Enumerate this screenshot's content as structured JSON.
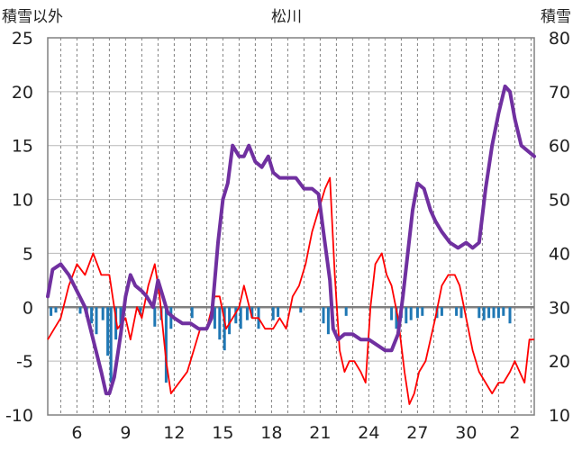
{
  "chart_data": {
    "type": "line",
    "title": "松川",
    "left_axis_label": "積雪以外",
    "right_axis_label": "積雪",
    "y_left": {
      "min": -10,
      "max": 25,
      "ticks": [
        "25",
        "20",
        "15",
        "10",
        "5",
        "0",
        "-5",
        "-10"
      ]
    },
    "y_right": {
      "min": 10,
      "max": 80,
      "ticks": [
        "80",
        "70",
        "60",
        "50",
        "40",
        "30",
        "20",
        "10"
      ]
    },
    "x_axis": {
      "day_start": 4.2,
      "day_end": 34.2,
      "tick_labels": [
        {
          "day": 6,
          "label": "6"
        },
        {
          "day": 9,
          "label": "9"
        },
        {
          "day": 12,
          "label": "12"
        },
        {
          "day": 15,
          "label": "15"
        },
        {
          "day": 18,
          "label": "18"
        },
        {
          "day": 21,
          "label": "21"
        },
        {
          "day": 24,
          "label": "24"
        },
        {
          "day": 27,
          "label": "27"
        },
        {
          "day": 30,
          "label": "30"
        },
        {
          "day": 33,
          "label": "2"
        }
      ]
    },
    "grid": {
      "vertical_dashed": true,
      "horizontal": true
    },
    "series": [
      {
        "role": "snow-depth",
        "axis": "right",
        "color": "#7030a0",
        "points": [
          [
            4.2,
            32
          ],
          [
            4.5,
            37
          ],
          [
            5.0,
            38
          ],
          [
            5.5,
            36
          ],
          [
            6.0,
            33
          ],
          [
            6.5,
            30
          ],
          [
            7.0,
            24
          ],
          [
            7.5,
            18
          ],
          [
            7.8,
            14
          ],
          [
            8.0,
            14
          ],
          [
            8.3,
            17
          ],
          [
            8.7,
            25
          ],
          [
            9.0,
            32
          ],
          [
            9.3,
            36
          ],
          [
            9.6,
            34
          ],
          [
            10.0,
            33
          ],
          [
            10.3,
            32
          ],
          [
            10.7,
            30
          ],
          [
            11.0,
            35
          ],
          [
            11.3,
            32
          ],
          [
            11.6,
            29
          ],
          [
            12.0,
            28
          ],
          [
            12.5,
            27
          ],
          [
            13.0,
            27
          ],
          [
            13.5,
            26
          ],
          [
            14.0,
            26
          ],
          [
            14.3,
            28
          ],
          [
            14.7,
            42
          ],
          [
            15.0,
            50
          ],
          [
            15.3,
            53
          ],
          [
            15.6,
            60
          ],
          [
            16.0,
            58
          ],
          [
            16.3,
            58
          ],
          [
            16.6,
            60
          ],
          [
            17.0,
            57
          ],
          [
            17.4,
            56
          ],
          [
            17.8,
            58
          ],
          [
            18.1,
            55
          ],
          [
            18.5,
            54
          ],
          [
            19.0,
            54
          ],
          [
            19.5,
            54
          ],
          [
            20.0,
            52
          ],
          [
            20.5,
            52
          ],
          [
            20.9,
            51
          ],
          [
            21.2,
            44
          ],
          [
            21.6,
            35
          ],
          [
            21.8,
            26
          ],
          [
            22.1,
            24
          ],
          [
            22.5,
            25
          ],
          [
            23.0,
            25
          ],
          [
            23.5,
            24
          ],
          [
            24.0,
            24
          ],
          [
            24.5,
            23
          ],
          [
            25.0,
            22
          ],
          [
            25.4,
            22
          ],
          [
            25.8,
            25
          ],
          [
            26.1,
            32
          ],
          [
            26.4,
            40
          ],
          [
            26.7,
            48
          ],
          [
            27.0,
            53
          ],
          [
            27.4,
            52
          ],
          [
            27.8,
            48
          ],
          [
            28.1,
            46
          ],
          [
            28.5,
            44
          ],
          [
            29.0,
            42
          ],
          [
            29.5,
            41
          ],
          [
            30.0,
            42
          ],
          [
            30.4,
            41
          ],
          [
            30.8,
            42
          ],
          [
            31.2,
            52
          ],
          [
            31.6,
            60
          ],
          [
            32.0,
            66
          ],
          [
            32.4,
            71
          ],
          [
            32.7,
            70
          ],
          [
            33.0,
            65
          ],
          [
            33.4,
            60
          ],
          [
            33.8,
            59
          ],
          [
            34.2,
            58
          ]
        ]
      },
      {
        "role": "temperature",
        "axis": "left",
        "color": "#ff0000",
        "points": [
          [
            4.2,
            -3
          ],
          [
            4.6,
            -2
          ],
          [
            5.0,
            -1
          ],
          [
            5.5,
            2
          ],
          [
            6.0,
            4
          ],
          [
            6.5,
            3
          ],
          [
            7.0,
            5
          ],
          [
            7.5,
            3
          ],
          [
            8.0,
            3
          ],
          [
            8.5,
            -2
          ],
          [
            9.0,
            -1
          ],
          [
            9.3,
            -3
          ],
          [
            9.7,
            0
          ],
          [
            10.0,
            -1
          ],
          [
            10.4,
            2
          ],
          [
            10.8,
            4
          ],
          [
            11.1,
            1
          ],
          [
            11.5,
            -5
          ],
          [
            11.8,
            -8
          ],
          [
            12.3,
            -7
          ],
          [
            12.8,
            -6
          ],
          [
            13.2,
            -4
          ],
          [
            13.6,
            -2
          ],
          [
            14.0,
            -2
          ],
          [
            14.5,
            1
          ],
          [
            14.8,
            1
          ],
          [
            15.2,
            -2
          ],
          [
            15.6,
            -1
          ],
          [
            16.0,
            0
          ],
          [
            16.3,
            2
          ],
          [
            16.8,
            -1
          ],
          [
            17.2,
            -1
          ],
          [
            17.6,
            -2
          ],
          [
            18.1,
            -2
          ],
          [
            18.5,
            -1
          ],
          [
            18.9,
            -2
          ],
          [
            19.3,
            1
          ],
          [
            19.7,
            2
          ],
          [
            20.1,
            4
          ],
          [
            20.5,
            7
          ],
          [
            20.9,
            9
          ],
          [
            21.3,
            11
          ],
          [
            21.6,
            12
          ],
          [
            21.9,
            3
          ],
          [
            22.2,
            -4
          ],
          [
            22.5,
            -6
          ],
          [
            22.8,
            -5
          ],
          [
            23.1,
            -5
          ],
          [
            23.5,
            -6
          ],
          [
            23.8,
            -7
          ],
          [
            24.1,
            0
          ],
          [
            24.4,
            4
          ],
          [
            24.8,
            5
          ],
          [
            25.1,
            3
          ],
          [
            25.4,
            2
          ],
          [
            25.8,
            -1
          ],
          [
            26.2,
            -6
          ],
          [
            26.5,
            -9
          ],
          [
            26.8,
            -8
          ],
          [
            27.1,
            -6
          ],
          [
            27.5,
            -5
          ],
          [
            27.8,
            -3
          ],
          [
            28.1,
            -1
          ],
          [
            28.5,
            2
          ],
          [
            28.9,
            3
          ],
          [
            29.3,
            3
          ],
          [
            29.6,
            2
          ],
          [
            30.0,
            -1
          ],
          [
            30.4,
            -4
          ],
          [
            30.8,
            -6
          ],
          [
            31.2,
            -7
          ],
          [
            31.6,
            -8
          ],
          [
            32.0,
            -7
          ],
          [
            32.3,
            -7
          ],
          [
            32.7,
            -6
          ],
          [
            33.0,
            -5
          ],
          [
            33.3,
            -6
          ],
          [
            33.6,
            -7
          ],
          [
            33.9,
            -3
          ],
          [
            34.2,
            -3
          ]
        ]
      },
      {
        "role": "precipitation",
        "axis": "left",
        "color": "#1f77b4",
        "bars": [
          [
            4.4,
            -0.8
          ],
          [
            4.7,
            -0.5
          ],
          [
            6.2,
            -0.6
          ],
          [
            6.6,
            -0.9
          ],
          [
            6.9,
            -1.5
          ],
          [
            7.2,
            -2.5
          ],
          [
            7.6,
            -1.2
          ],
          [
            7.9,
            -4.5
          ],
          [
            8.1,
            -7
          ],
          [
            8.4,
            -3
          ],
          [
            8.7,
            -2
          ],
          [
            9.9,
            -0.7
          ],
          [
            10.8,
            -1.8
          ],
          [
            11.2,
            -1.2
          ],
          [
            11.5,
            -7
          ],
          [
            11.8,
            -2
          ],
          [
            13.1,
            -1
          ],
          [
            14.5,
            -2
          ],
          [
            14.8,
            -3
          ],
          [
            15.1,
            -4
          ],
          [
            15.4,
            -2.5
          ],
          [
            15.8,
            -1.5
          ],
          [
            16.1,
            -2
          ],
          [
            16.5,
            -1.2
          ],
          [
            16.8,
            -1
          ],
          [
            17.2,
            -2
          ],
          [
            18.1,
            -1.2
          ],
          [
            18.4,
            -0.9
          ],
          [
            19.8,
            -0.5
          ],
          [
            21.2,
            -1.5
          ],
          [
            21.5,
            -2.5
          ],
          [
            22.6,
            -0.8
          ],
          [
            25.4,
            -1.2
          ],
          [
            25.7,
            -2
          ],
          [
            26.0,
            -1
          ],
          [
            26.3,
            -1.5
          ],
          [
            26.6,
            -1.2
          ],
          [
            27.0,
            -1
          ],
          [
            27.3,
            -0.8
          ],
          [
            28.2,
            -1
          ],
          [
            28.5,
            -0.8
          ],
          [
            29.4,
            -0.8
          ],
          [
            29.7,
            -1
          ],
          [
            30.8,
            -1
          ],
          [
            31.1,
            -1.2
          ],
          [
            31.4,
            -1
          ],
          [
            31.7,
            -1
          ],
          [
            32.0,
            -1
          ],
          [
            32.3,
            -0.8
          ],
          [
            32.7,
            -1.5
          ]
        ]
      }
    ]
  }
}
